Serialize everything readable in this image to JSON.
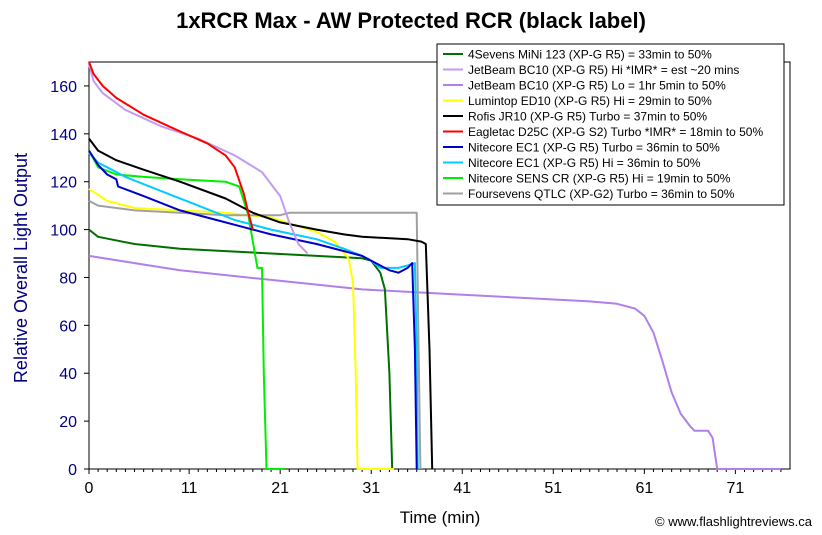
{
  "chart_data": {
    "type": "line",
    "title": "1xRCR Max - AW Protected RCR (black label)",
    "xlabel": "Time (min)",
    "ylabel": "Relative Overall Light Output",
    "xlim": [
      0,
      77
    ],
    "ylim": [
      0,
      170
    ],
    "x_ticks": [
      0,
      11,
      21,
      31,
      41,
      51,
      61,
      71
    ],
    "y_ticks": [
      0,
      20,
      40,
      60,
      80,
      100,
      120,
      140,
      160
    ],
    "grid": false,
    "legend_position": "top-right",
    "credit": "© www.flashlightreviews.ca",
    "series": [
      {
        "name": "4Sevens MiNi 123 (XP-G R5) = 33min to 50%",
        "color": "#007000",
        "points": [
          [
            0,
            100
          ],
          [
            1,
            97
          ],
          [
            5,
            94
          ],
          [
            10,
            92
          ],
          [
            15,
            91
          ],
          [
            20,
            90
          ],
          [
            25,
            89
          ],
          [
            30,
            88
          ],
          [
            31,
            87
          ],
          [
            32,
            82
          ],
          [
            32.5,
            75
          ],
          [
            33,
            40
          ],
          [
            33.3,
            0
          ]
        ]
      },
      {
        "name": "JetBeam BC10 (XP-G R5) Hi *IMR* = est ~20 mins",
        "color": "#C49AF2",
        "points": [
          [
            0,
            169
          ],
          [
            0.5,
            162
          ],
          [
            1.5,
            157
          ],
          [
            4,
            150
          ],
          [
            8,
            143
          ],
          [
            12,
            138
          ],
          [
            16,
            131
          ],
          [
            19,
            124
          ],
          [
            21,
            114
          ],
          [
            22,
            103
          ],
          [
            23,
            94
          ],
          [
            24,
            90
          ]
        ]
      },
      {
        "name": "JetBeam BC10 (XP-G R5) Lo = 1hr 5min to 50%",
        "color": "#B080E8",
        "points": [
          [
            0,
            89
          ],
          [
            5,
            86
          ],
          [
            10,
            83
          ],
          [
            20,
            79
          ],
          [
            30,
            75
          ],
          [
            40,
            73
          ],
          [
            50,
            71
          ],
          [
            55,
            70
          ],
          [
            58,
            69
          ],
          [
            60,
            67
          ],
          [
            61,
            64
          ],
          [
            62,
            57
          ],
          [
            63,
            45
          ],
          [
            64,
            32
          ],
          [
            65,
            23
          ],
          [
            66,
            18
          ],
          [
            66.5,
            16
          ],
          [
            68,
            16
          ],
          [
            68.5,
            13
          ],
          [
            69,
            0
          ],
          [
            72,
            0
          ],
          [
            76,
            0
          ]
        ]
      },
      {
        "name": "Lumintop ED10 (XP-G R5) Hi = 29min to 50%",
        "color": "#FFFF00",
        "points": [
          [
            0,
            117
          ],
          [
            2,
            112
          ],
          [
            5,
            109
          ],
          [
            10,
            108
          ],
          [
            15,
            107
          ],
          [
            20,
            105
          ],
          [
            25,
            99
          ],
          [
            27,
            95
          ],
          [
            28.5,
            88
          ],
          [
            29,
            78
          ],
          [
            29.3,
            40
          ],
          [
            29.5,
            0
          ],
          [
            33.5,
            0
          ]
        ]
      },
      {
        "name": "Rofis JR10 (XP-G R5) Turbo = 37min to 50%",
        "color": "#000000",
        "points": [
          [
            0,
            138
          ],
          [
            1,
            133
          ],
          [
            3,
            129
          ],
          [
            6,
            125
          ],
          [
            10,
            120
          ],
          [
            15,
            113
          ],
          [
            18,
            107
          ],
          [
            21,
            103
          ],
          [
            25,
            100
          ],
          [
            28,
            98
          ],
          [
            30,
            97
          ],
          [
            35,
            96
          ],
          [
            36.5,
            95
          ],
          [
            37,
            94
          ],
          [
            37.4,
            50
          ],
          [
            37.7,
            0
          ]
        ]
      },
      {
        "name": "Eagletac D25C (XP-G S2) Turbo *IMR* = 18min to 50%",
        "color": "#FF0000",
        "points": [
          [
            0,
            170
          ],
          [
            0.5,
            165
          ],
          [
            1.5,
            160
          ],
          [
            3,
            155
          ],
          [
            6,
            148
          ],
          [
            10,
            141
          ],
          [
            13,
            136
          ],
          [
            15,
            131
          ],
          [
            16,
            126
          ],
          [
            17,
            115
          ],
          [
            17.5,
            107
          ],
          [
            18,
            100
          ]
        ]
      },
      {
        "name": "Nitecore EC1 (XP-G R5) Turbo = 36min to 50%",
        "color": "#0000CC",
        "points": [
          [
            0,
            133
          ],
          [
            1,
            127
          ],
          [
            2,
            123
          ],
          [
            3,
            121
          ],
          [
            3.2,
            118
          ],
          [
            6,
            114
          ],
          [
            10,
            108
          ],
          [
            14,
            104
          ],
          [
            17,
            101
          ],
          [
            20,
            98
          ],
          [
            25,
            94
          ],
          [
            30,
            89
          ],
          [
            32,
            85
          ],
          [
            33,
            83
          ],
          [
            34,
            82
          ],
          [
            35,
            84
          ],
          [
            35.5,
            86
          ],
          [
            35.8,
            50
          ],
          [
            36,
            0
          ]
        ]
      },
      {
        "name": "Nitecore EC1 (XP-G R5) Hi = 36min to 50%",
        "color": "#00CCFF",
        "points": [
          [
            0,
            132
          ],
          [
            1,
            128
          ],
          [
            2,
            126
          ],
          [
            4,
            122
          ],
          [
            8,
            116
          ],
          [
            12,
            110
          ],
          [
            16,
            104
          ],
          [
            20,
            100
          ],
          [
            25,
            96
          ],
          [
            28,
            92
          ],
          [
            30,
            89
          ],
          [
            31,
            87
          ],
          [
            32,
            84
          ],
          [
            34,
            84
          ],
          [
            35,
            85
          ],
          [
            35.8,
            86
          ],
          [
            36,
            50
          ],
          [
            36.1,
            0
          ]
        ]
      },
      {
        "name": "Nitecore SENS CR (XP-G R5) Hi = 19min to 50%",
        "color": "#00EE00",
        "points": [
          [
            0,
            133
          ],
          [
            1,
            126
          ],
          [
            3,
            123
          ],
          [
            6,
            122
          ],
          [
            10,
            121
          ],
          [
            15,
            120
          ],
          [
            16.5,
            118
          ],
          [
            17.5,
            106
          ],
          [
            18.5,
            84
          ],
          [
            19,
            84
          ],
          [
            19.2,
            40
          ],
          [
            19.5,
            0
          ],
          [
            21.5,
            0
          ]
        ]
      },
      {
        "name": "Foursevens QTLC (XP-G2) Turbo = 36min to 50%",
        "color": "#A0A0A0",
        "points": [
          [
            0,
            112
          ],
          [
            1,
            110
          ],
          [
            5,
            108
          ],
          [
            10,
            107
          ],
          [
            15,
            106
          ],
          [
            20,
            106
          ],
          [
            21,
            106
          ],
          [
            22,
            107
          ],
          [
            30,
            107
          ],
          [
            33,
            107
          ],
          [
            35,
            107
          ],
          [
            36,
            107
          ],
          [
            36.2,
            50
          ],
          [
            36.4,
            0
          ]
        ]
      }
    ]
  }
}
